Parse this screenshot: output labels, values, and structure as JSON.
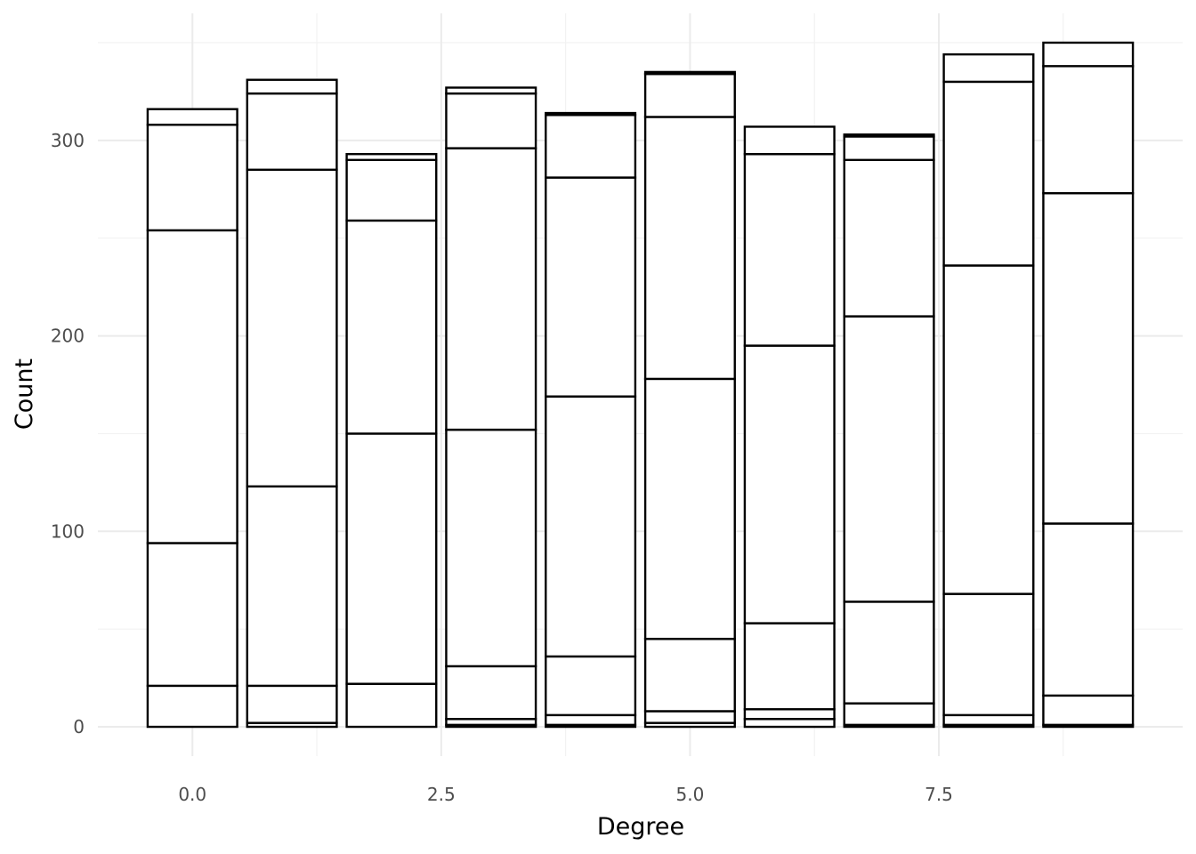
{
  "chart_data": {
    "type": "bar",
    "stacked": true,
    "xlabel": "Degree",
    "ylabel": "Count",
    "x": [
      0,
      1,
      2,
      3,
      4,
      5,
      6,
      7,
      8,
      9
    ],
    "xlim": [
      -0.95,
      9.95
    ],
    "ylim": [
      -15,
      365
    ],
    "xticks": [
      0,
      2.5,
      5,
      7.5
    ],
    "xtick_labels": [
      "0.0",
      "2.5",
      "5.0",
      "7.5"
    ],
    "yticks": [
      0,
      100,
      200,
      300
    ],
    "ytick_labels": [
      "0",
      "100",
      "200",
      "300"
    ],
    "grid": true,
    "legend": "none",
    "fill_color": "#ffffff",
    "outline_color": "#000000",
    "stack_boundaries": [
      [
        21,
        94,
        254,
        308,
        316
      ],
      [
        2,
        21,
        123,
        285,
        324,
        331
      ],
      [
        22,
        150,
        259,
        290,
        293
      ],
      [
        1,
        4,
        31,
        152,
        296,
        324,
        327
      ],
      [
        1,
        6,
        36,
        169,
        281,
        313,
        314
      ],
      [
        2,
        8,
        45,
        178,
        312,
        334,
        335
      ],
      [
        4,
        9,
        53,
        195,
        293,
        307
      ],
      [
        1,
        12,
        64,
        210,
        290,
        302,
        303
      ],
      [
        1,
        6,
        68,
        236,
        330,
        344
      ],
      [
        1,
        16,
        104,
        273,
        338,
        350
      ]
    ]
  }
}
